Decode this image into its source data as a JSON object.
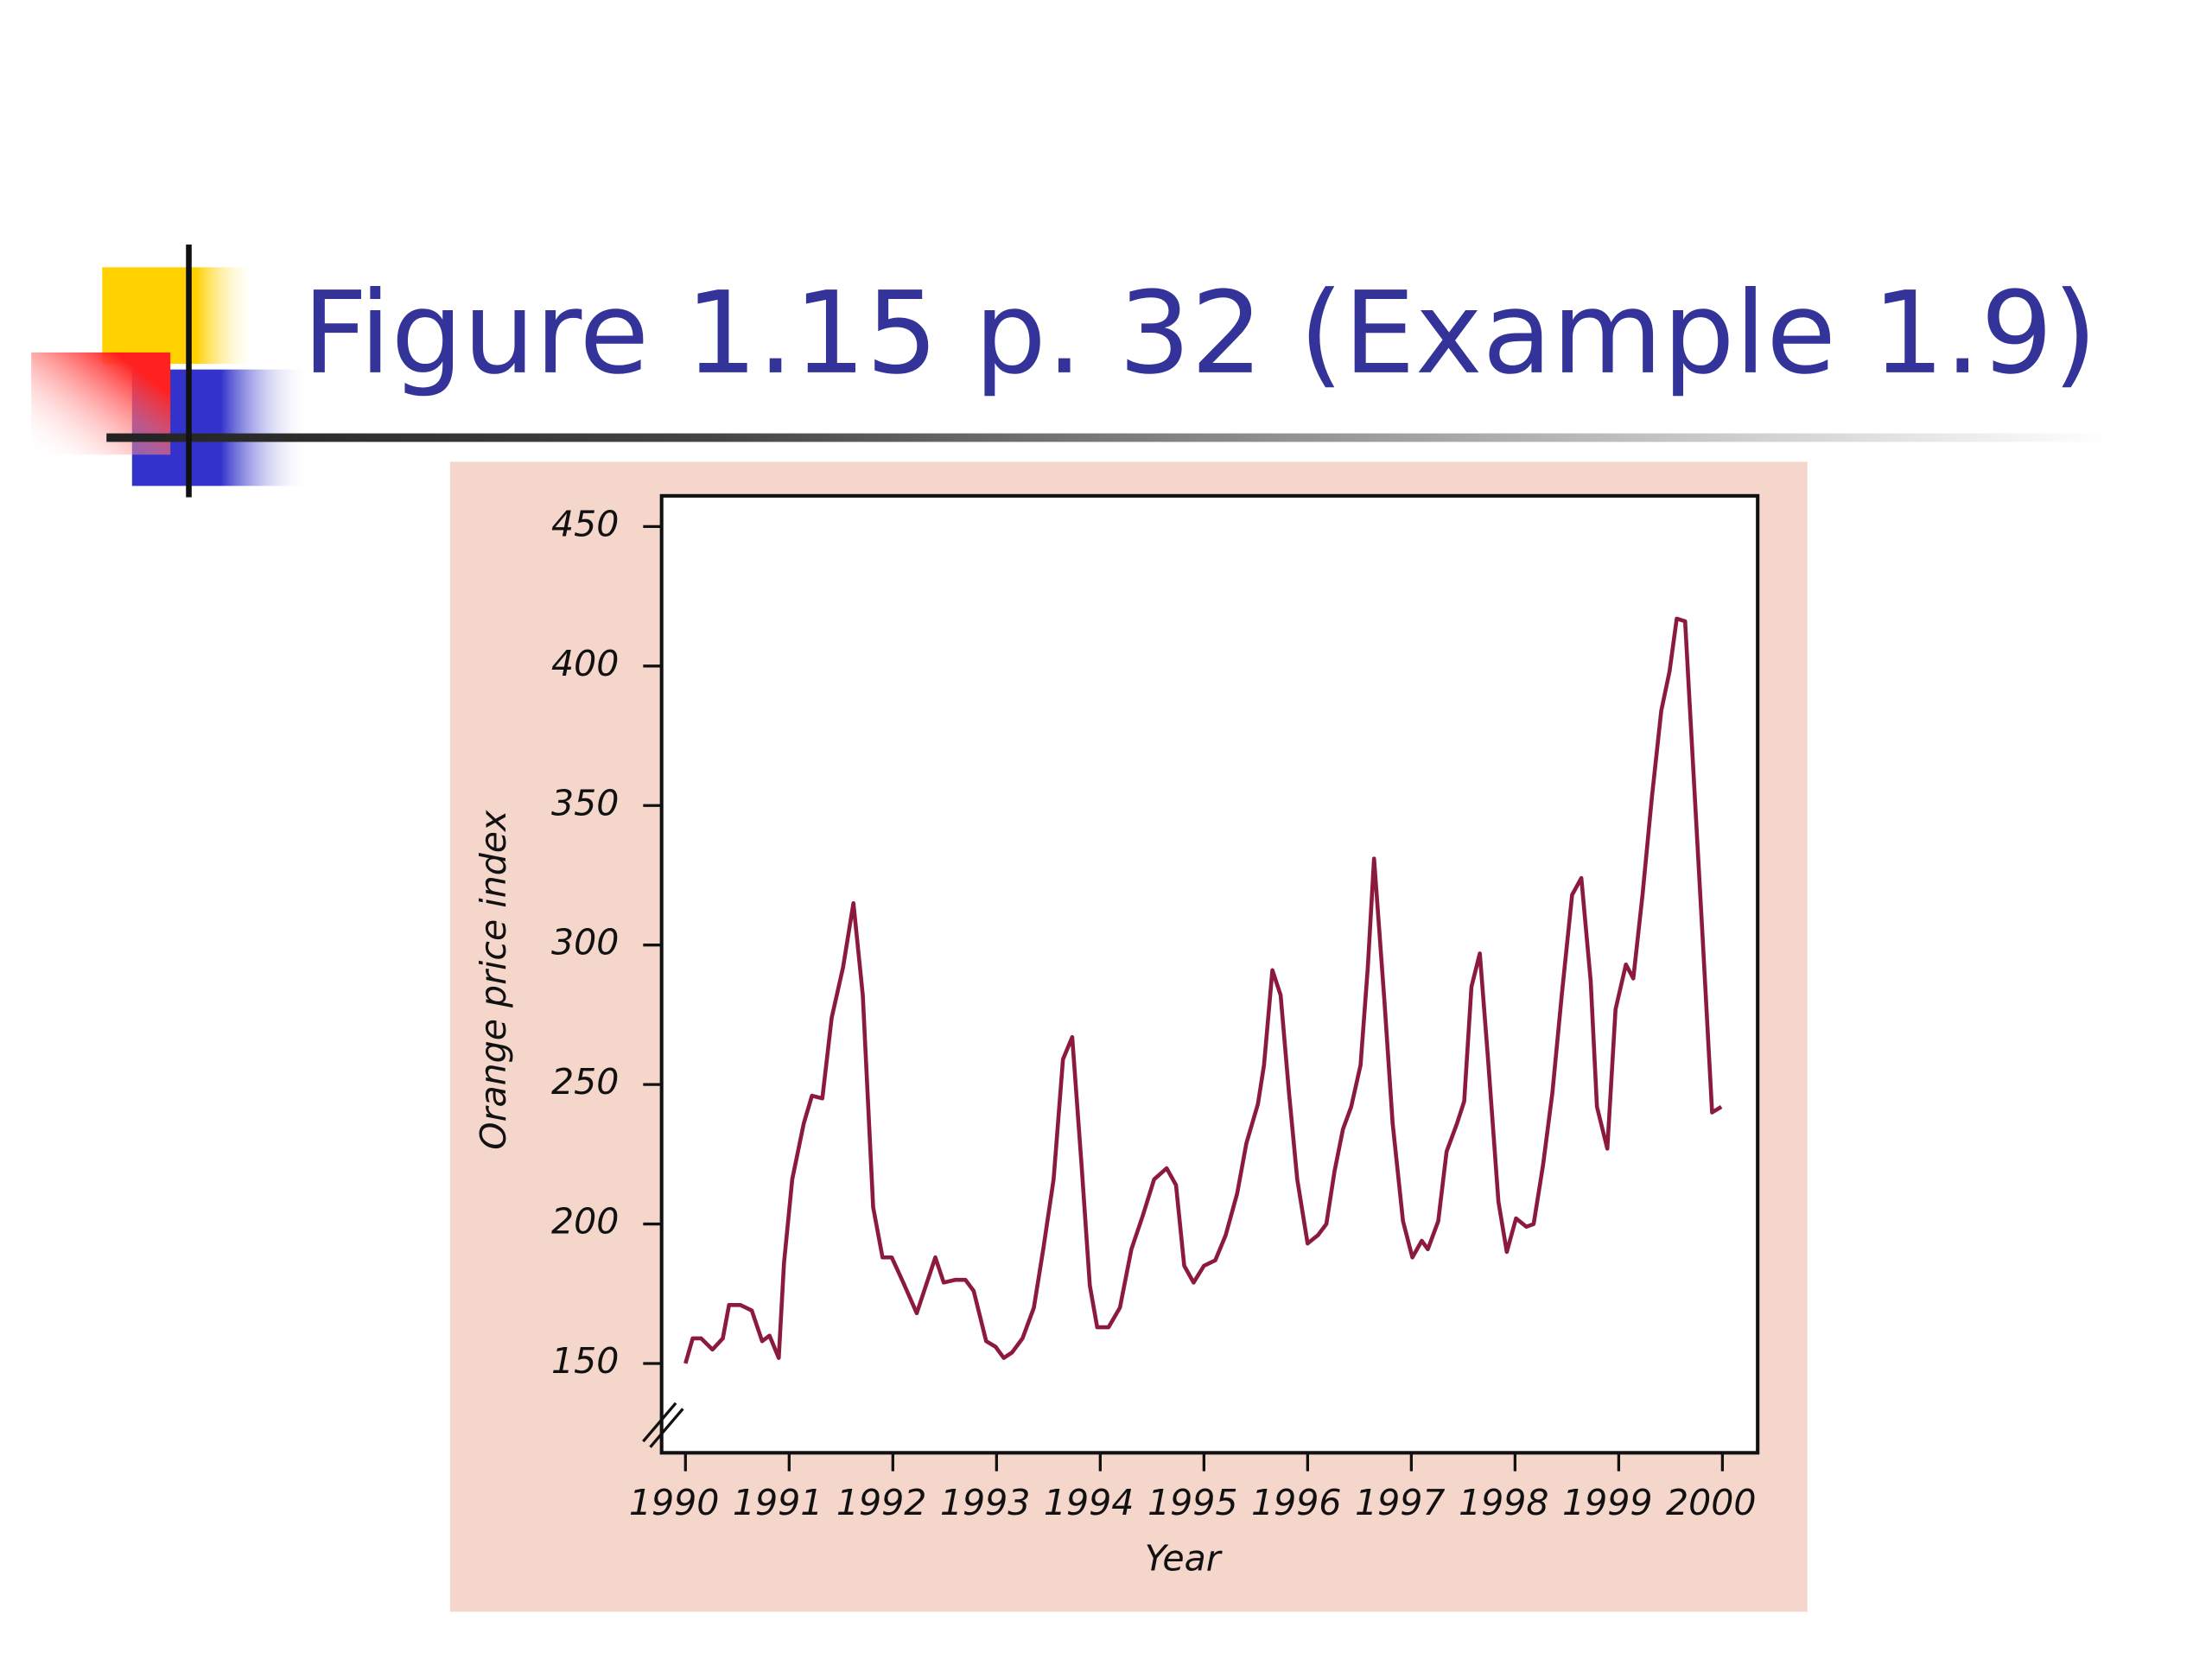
{
  "title": "Figure 1.15 p. 32 (Example 1.9)",
  "chart_data": {
    "type": "line",
    "xlabel": "Year",
    "ylabel": "Orange price index",
    "color": "#8b1a3d",
    "x": [
      1990,
      1990.07,
      1990.15,
      1990.26,
      1990.36,
      1990.42,
      1990.53,
      1990.64,
      1990.74,
      1990.81,
      1990.9,
      1990.95,
      1991.03,
      1991.14,
      1991.22,
      1991.32,
      1991.41,
      1991.52,
      1991.62,
      1991.71,
      1991.81,
      1991.9,
      1991.99,
      1992.1,
      1992.23,
      1992.32,
      1992.41,
      1992.49,
      1992.6,
      1992.7,
      1992.78,
      1992.9,
      1992.99,
      1993.07,
      1993.15,
      1993.25,
      1993.36,
      1993.45,
      1993.55,
      1993.64,
      1993.73,
      1993.82,
      1993.9,
      1993.97,
      1994.08,
      1994.19,
      1994.3,
      1994.41,
      1994.52,
      1994.64,
      1994.73,
      1994.81,
      1994.9,
      1995,
      1995.11,
      1995.21,
      1995.32,
      1995.41,
      1995.52,
      1995.58,
      1995.66,
      1995.74,
      1995.82,
      1995.9,
      1996,
      1996.1,
      1996.18,
      1996.26,
      1996.34,
      1996.42,
      1996.51,
      1996.58,
      1996.64,
      1996.74,
      1996.82,
      1996.92,
      1997.01,
      1997.1,
      1997.16,
      1997.26,
      1997.34,
      1997.44,
      1997.51,
      1997.58,
      1997.66,
      1997.74,
      1997.84,
      1997.92,
      1998.01,
      1998.11,
      1998.18,
      1998.27,
      1998.36,
      1998.45,
      1998.55,
      1998.64,
      1998.73,
      1998.79,
      1998.89,
      1998.97,
      1999.07,
      1999.14,
      1999.23,
      1999.32,
      1999.41,
      1999.49,
      1999.56,
      1999.64,
      1999.71,
      1999.81,
      1999.9,
      1999.99
    ],
    "values": [
      150,
      159,
      159,
      155,
      159,
      171,
      171,
      169,
      158,
      160,
      152,
      186,
      216,
      236,
      246,
      245,
      274,
      292,
      315,
      282,
      206,
      188,
      188,
      179,
      168,
      178,
      188,
      179,
      180,
      180,
      176,
      158,
      156,
      152,
      154,
      159,
      170,
      191,
      216,
      259,
      267,
      221,
      178,
      163,
      163,
      170,
      191,
      203,
      216,
      220,
      214,
      185,
      179,
      185,
      187,
      196,
      211,
      229,
      243,
      257,
      291,
      282,
      247,
      216,
      193,
      196,
      200,
      219,
      234,
      242,
      257,
      292,
      331,
      280,
      236,
      201,
      188,
      194,
      191,
      201,
      226,
      236,
      244,
      285,
      297,
      259,
      208,
      190,
      202,
      199,
      200,
      221,
      247,
      282,
      318,
      324,
      287,
      242,
      227,
      277,
      293,
      288,
      318,
      353,
      384,
      398,
      417,
      416,
      369,
      302,
      240,
      242
    ],
    "xlim": [
      1989.77,
      2000.34
    ],
    "xticks": [
      1990,
      1991,
      1992,
      1993,
      1994,
      1995,
      1996,
      1997,
      1998,
      1999,
      2000
    ],
    "ylim": [
      118,
      461
    ],
    "yticks": [
      150,
      200,
      250,
      300,
      350,
      400,
      450
    ]
  }
}
